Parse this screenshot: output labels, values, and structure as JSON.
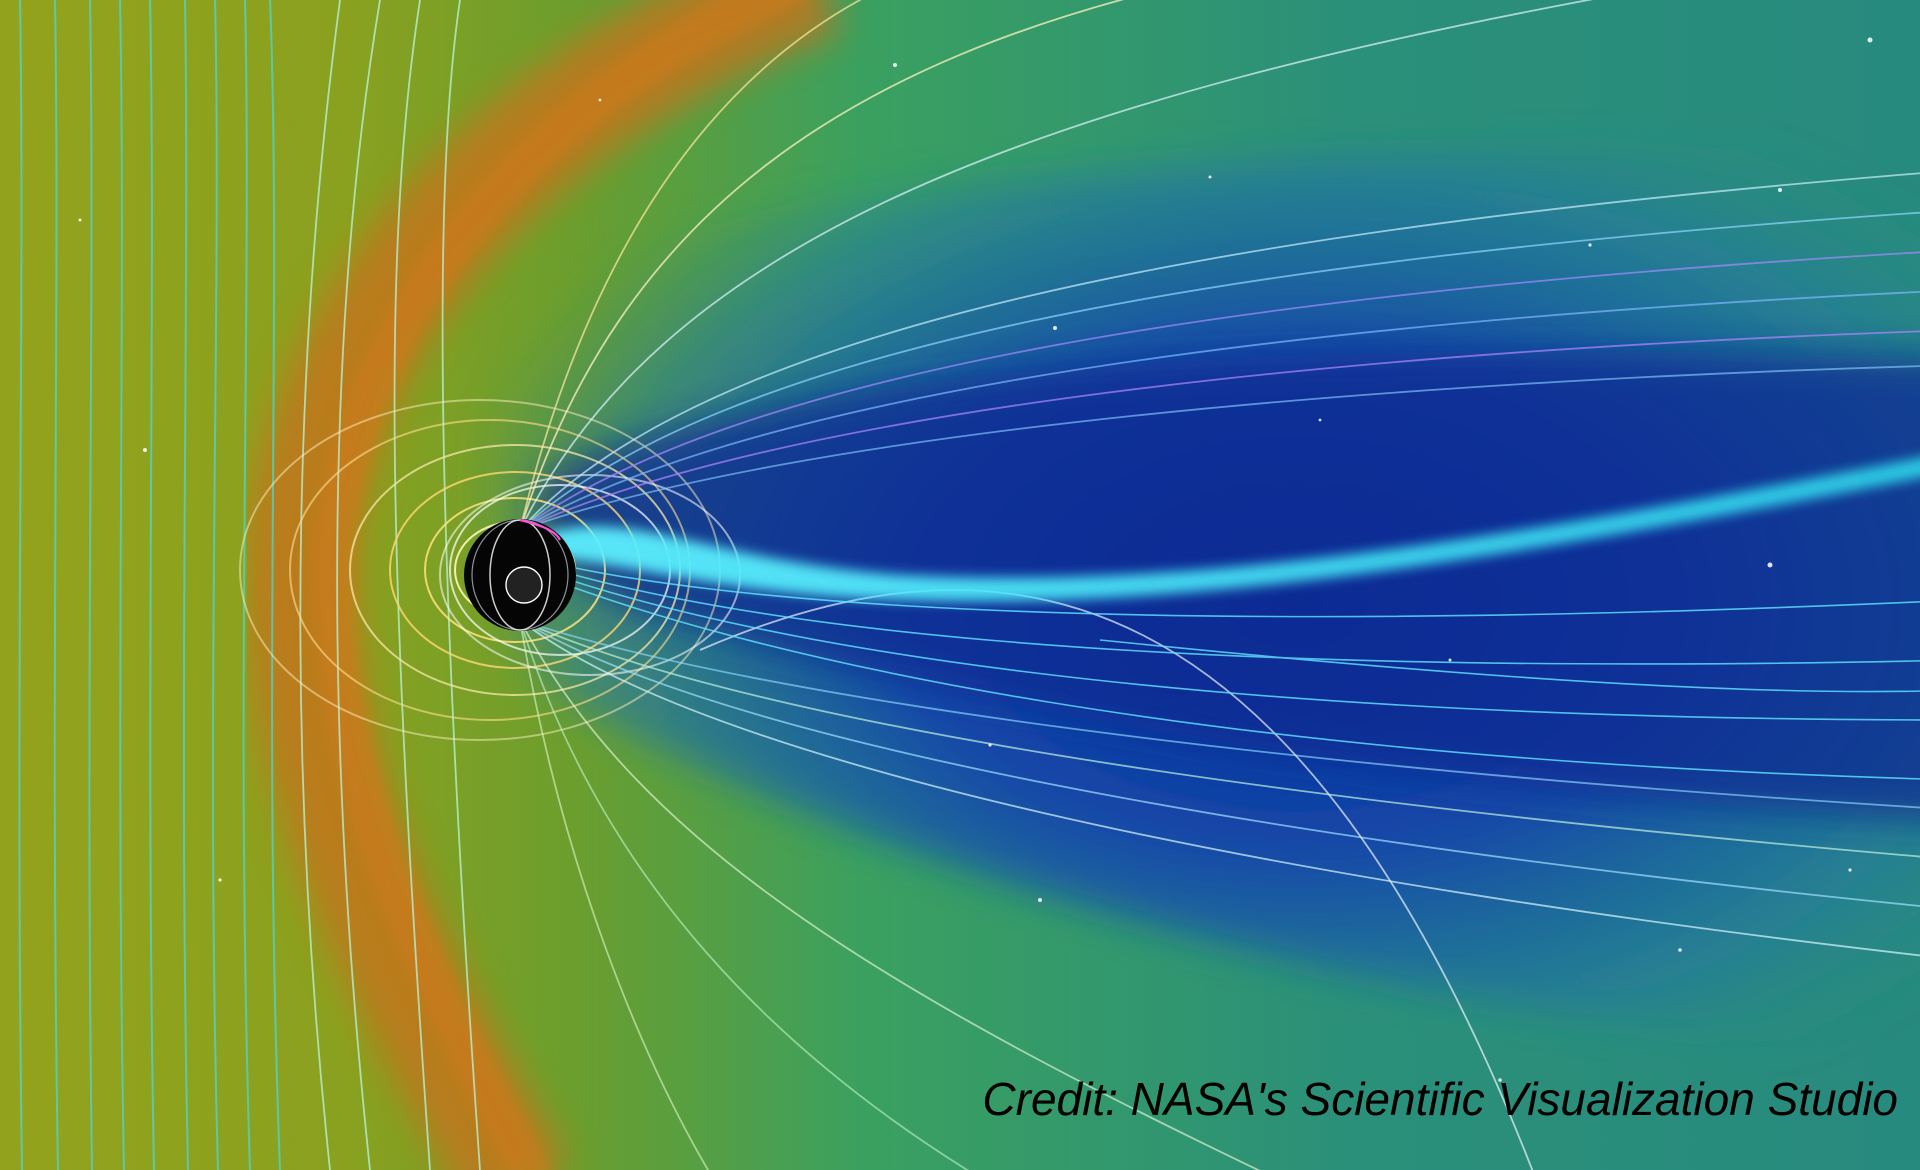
{
  "image": {
    "subject": "visualization of planet magnetosphere",
    "palette": {
      "solar_wind": "#8ea51e",
      "bow_shock": "#c4781c",
      "magnetosheath": "#3aa060",
      "magnetotail": "#0c2d8f",
      "plasma_sheet": "#36d8ef",
      "planet": "#050505"
    }
  },
  "credit": {
    "text": "Credit: NASA's Scientific Visualization Studio"
  }
}
